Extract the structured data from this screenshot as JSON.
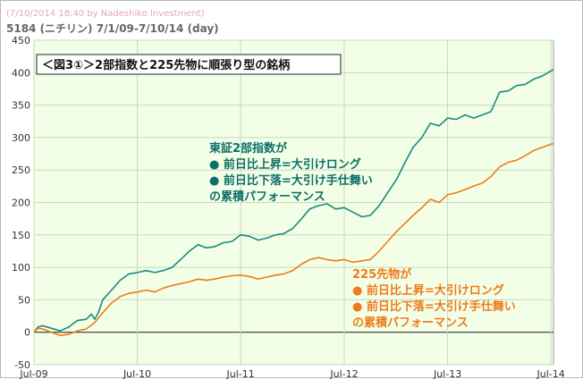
{
  "header": {
    "credit": "(7/10/2014 18:40 by Nadeshiko Investment)",
    "subtitle": "5184 (ニチリン) 7/1/09-7/10/14 (day)"
  },
  "chart_title": "＜図3①＞2部指数と225先物に順張り型の銘柄",
  "annotations": {
    "teal": [
      "東証2部指数が",
      "● 前日比上昇=大引けロング",
      "● 前日比下落=大引け手仕舞い",
      "の累積パフォーマンス"
    ],
    "orange": [
      "225先物が",
      "● 前日比上昇=大引けロング",
      "● 前日比下落=大引け手仕舞い",
      "の累積パフォーマンス"
    ]
  },
  "colors": {
    "teal": "#1a8a80",
    "orange": "#f07a1c",
    "plot_bg": "#f2ffe6",
    "grid": "#c8d8bc",
    "zero_line": "#333333"
  },
  "chart_data": {
    "type": "line",
    "ylim": [
      -50,
      450
    ],
    "yticks": [
      -50,
      0,
      50,
      100,
      150,
      200,
      250,
      300,
      350,
      400,
      450
    ],
    "xlim": [
      "2009-07-01",
      "2014-07-10"
    ],
    "xticks": [
      {
        "date": "2009-07-01",
        "label": "Jul-09"
      },
      {
        "date": "2010-07-01",
        "label": "Jul-10"
      },
      {
        "date": "2011-07-01",
        "label": "Jul-11"
      },
      {
        "date": "2012-07-01",
        "label": "Jul-12"
      },
      {
        "date": "2013-07-01",
        "label": "Jul-13"
      },
      {
        "date": "2014-07-01",
        "label": "Jul-14"
      }
    ],
    "grid": true,
    "series": [
      {
        "key": "teal",
        "points": [
          [
            "2009-07-01",
            0
          ],
          [
            "2009-07-15",
            8
          ],
          [
            "2009-08-01",
            10
          ],
          [
            "2009-09-01",
            6
          ],
          [
            "2009-10-01",
            2
          ],
          [
            "2009-11-01",
            8
          ],
          [
            "2009-12-01",
            18
          ],
          [
            "2010-01-01",
            20
          ],
          [
            "2010-01-20",
            28
          ],
          [
            "2010-02-01",
            20
          ],
          [
            "2010-02-15",
            32
          ],
          [
            "2010-03-01",
            50
          ],
          [
            "2010-04-01",
            65
          ],
          [
            "2010-05-01",
            80
          ],
          [
            "2010-06-01",
            90
          ],
          [
            "2010-07-01",
            92
          ],
          [
            "2010-08-01",
            95
          ],
          [
            "2010-09-01",
            92
          ],
          [
            "2010-10-01",
            95
          ],
          [
            "2010-11-01",
            100
          ],
          [
            "2010-12-01",
            112
          ],
          [
            "2011-01-01",
            125
          ],
          [
            "2011-02-01",
            135
          ],
          [
            "2011-03-01",
            130
          ],
          [
            "2011-04-01",
            132
          ],
          [
            "2011-05-01",
            138
          ],
          [
            "2011-06-01",
            140
          ],
          [
            "2011-07-01",
            150
          ],
          [
            "2011-08-01",
            148
          ],
          [
            "2011-09-01",
            142
          ],
          [
            "2011-10-01",
            145
          ],
          [
            "2011-11-01",
            150
          ],
          [
            "2011-12-01",
            152
          ],
          [
            "2012-01-01",
            160
          ],
          [
            "2012-02-01",
            175
          ],
          [
            "2012-03-01",
            190
          ],
          [
            "2012-04-01",
            195
          ],
          [
            "2012-05-01",
            198
          ],
          [
            "2012-06-01",
            190
          ],
          [
            "2012-07-01",
            192
          ],
          [
            "2012-08-01",
            185
          ],
          [
            "2012-09-01",
            178
          ],
          [
            "2012-10-01",
            180
          ],
          [
            "2012-11-01",
            195
          ],
          [
            "2012-12-01",
            215
          ],
          [
            "2013-01-01",
            235
          ],
          [
            "2013-02-01",
            262
          ],
          [
            "2013-03-01",
            285
          ],
          [
            "2013-04-01",
            300
          ],
          [
            "2013-05-01",
            322
          ],
          [
            "2013-06-01",
            318
          ],
          [
            "2013-07-01",
            330
          ],
          [
            "2013-08-01",
            328
          ],
          [
            "2013-09-01",
            335
          ],
          [
            "2013-10-01",
            330
          ],
          [
            "2013-11-01",
            335
          ],
          [
            "2013-12-01",
            340
          ],
          [
            "2014-01-01",
            370
          ],
          [
            "2014-02-01",
            372
          ],
          [
            "2014-03-01",
            380
          ],
          [
            "2014-04-01",
            382
          ],
          [
            "2014-05-01",
            390
          ],
          [
            "2014-06-01",
            395
          ],
          [
            "2014-07-10",
            405
          ]
        ]
      },
      {
        "key": "orange",
        "points": [
          [
            "2009-07-01",
            0
          ],
          [
            "2009-07-15",
            6
          ],
          [
            "2009-08-01",
            5
          ],
          [
            "2009-09-01",
            0
          ],
          [
            "2009-10-01",
            -5
          ],
          [
            "2009-11-01",
            -3
          ],
          [
            "2009-12-01",
            2
          ],
          [
            "2010-01-01",
            5
          ],
          [
            "2010-02-01",
            15
          ],
          [
            "2010-03-01",
            30
          ],
          [
            "2010-04-01",
            45
          ],
          [
            "2010-05-01",
            55
          ],
          [
            "2010-06-01",
            60
          ],
          [
            "2010-07-01",
            62
          ],
          [
            "2010-08-01",
            65
          ],
          [
            "2010-09-01",
            62
          ],
          [
            "2010-10-01",
            68
          ],
          [
            "2010-11-01",
            72
          ],
          [
            "2010-12-01",
            75
          ],
          [
            "2011-01-01",
            78
          ],
          [
            "2011-02-01",
            82
          ],
          [
            "2011-03-01",
            80
          ],
          [
            "2011-04-01",
            82
          ],
          [
            "2011-05-01",
            85
          ],
          [
            "2011-06-01",
            87
          ],
          [
            "2011-07-01",
            88
          ],
          [
            "2011-08-01",
            86
          ],
          [
            "2011-09-01",
            82
          ],
          [
            "2011-10-01",
            85
          ],
          [
            "2011-11-01",
            88
          ],
          [
            "2011-12-01",
            90
          ],
          [
            "2012-01-01",
            95
          ],
          [
            "2012-02-01",
            105
          ],
          [
            "2012-03-01",
            112
          ],
          [
            "2012-04-01",
            115
          ],
          [
            "2012-05-01",
            112
          ],
          [
            "2012-06-01",
            110
          ],
          [
            "2012-07-01",
            112
          ],
          [
            "2012-08-01",
            108
          ],
          [
            "2012-09-01",
            110
          ],
          [
            "2012-10-01",
            112
          ],
          [
            "2012-11-01",
            125
          ],
          [
            "2012-12-01",
            140
          ],
          [
            "2013-01-01",
            155
          ],
          [
            "2013-02-01",
            168
          ],
          [
            "2013-03-01",
            180
          ],
          [
            "2013-04-01",
            192
          ],
          [
            "2013-05-01",
            205
          ],
          [
            "2013-06-01",
            200
          ],
          [
            "2013-07-01",
            212
          ],
          [
            "2013-08-01",
            215
          ],
          [
            "2013-09-01",
            220
          ],
          [
            "2013-10-01",
            225
          ],
          [
            "2013-11-01",
            230
          ],
          [
            "2013-12-01",
            240
          ],
          [
            "2014-01-01",
            255
          ],
          [
            "2014-02-01",
            262
          ],
          [
            "2014-03-01",
            265
          ],
          [
            "2014-04-01",
            272
          ],
          [
            "2014-05-01",
            280
          ],
          [
            "2014-06-01",
            285
          ],
          [
            "2014-07-10",
            291
          ]
        ]
      }
    ]
  }
}
